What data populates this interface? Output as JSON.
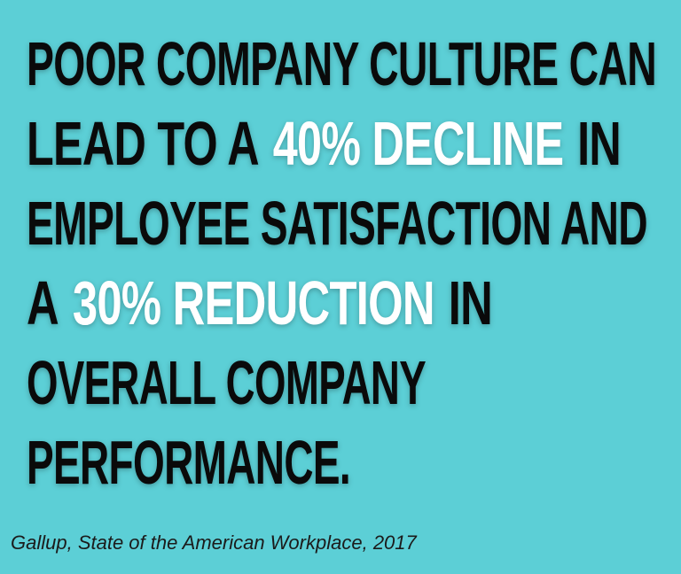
{
  "statement": {
    "lines": [
      [
        {
          "text": "POOR COMPANY CULTURE CAN",
          "highlight": false
        }
      ],
      [
        {
          "text": "LEAD TO A",
          "highlight": false
        },
        {
          "text": "40% DECLINE",
          "highlight": true
        },
        {
          "text": "IN",
          "highlight": false
        }
      ],
      [
        {
          "text": "EMPLOYEE SATISFACTION AND",
          "highlight": false
        }
      ],
      [
        {
          "text": "A",
          "highlight": false
        },
        {
          "text": "30% REDUCTION",
          "highlight": true
        },
        {
          "text": "IN",
          "highlight": false
        }
      ],
      [
        {
          "text": "OVERALL COMPANY",
          "highlight": false
        }
      ],
      [
        {
          "text": "PERFORMANCE.",
          "highlight": false
        }
      ]
    ]
  },
  "source": "Gallup, State of the American Workplace, 2017"
}
